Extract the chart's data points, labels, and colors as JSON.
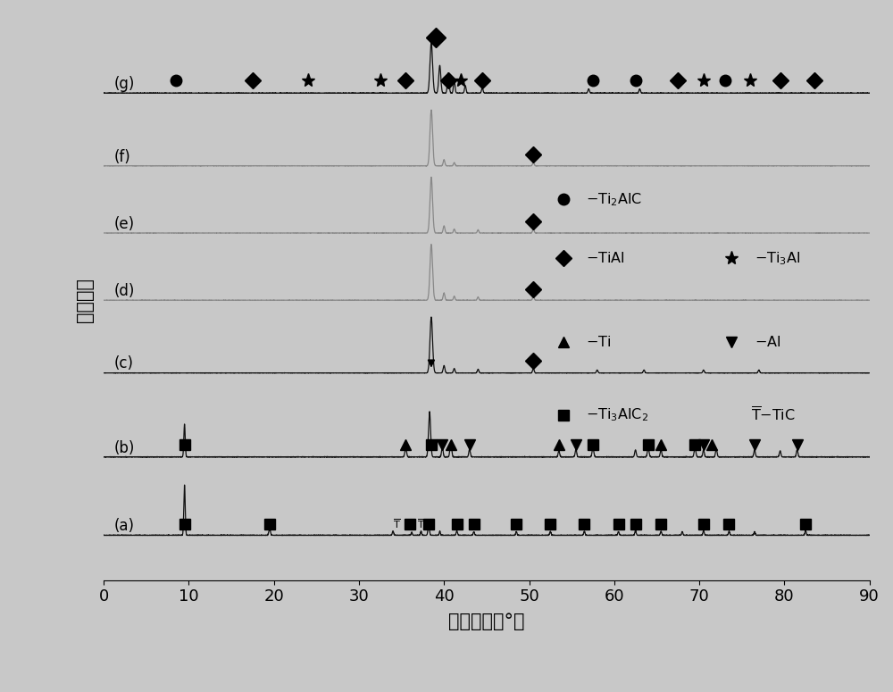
{
  "xlabel": "衍射角度（°）",
  "ylabel": "相对强度",
  "xlim": [
    0,
    90
  ],
  "xticks": [
    0,
    10,
    20,
    30,
    40,
    50,
    60,
    70,
    80,
    90
  ],
  "trace_labels": [
    "(a)",
    "(b)",
    "(c)",
    "(d)",
    "(e)",
    "(f)",
    "(g)"
  ],
  "trace_offsets": [
    0.08,
    0.22,
    0.37,
    0.5,
    0.62,
    0.74,
    0.87
  ],
  "trace_colors_black": [
    true,
    true,
    true,
    false,
    false,
    false,
    true
  ],
  "background_color": "#c8c8c8",
  "xlabel_fontsize": 15,
  "ylabel_fontsize": 15,
  "tick_fontsize": 13,
  "label_fontsize": 12
}
